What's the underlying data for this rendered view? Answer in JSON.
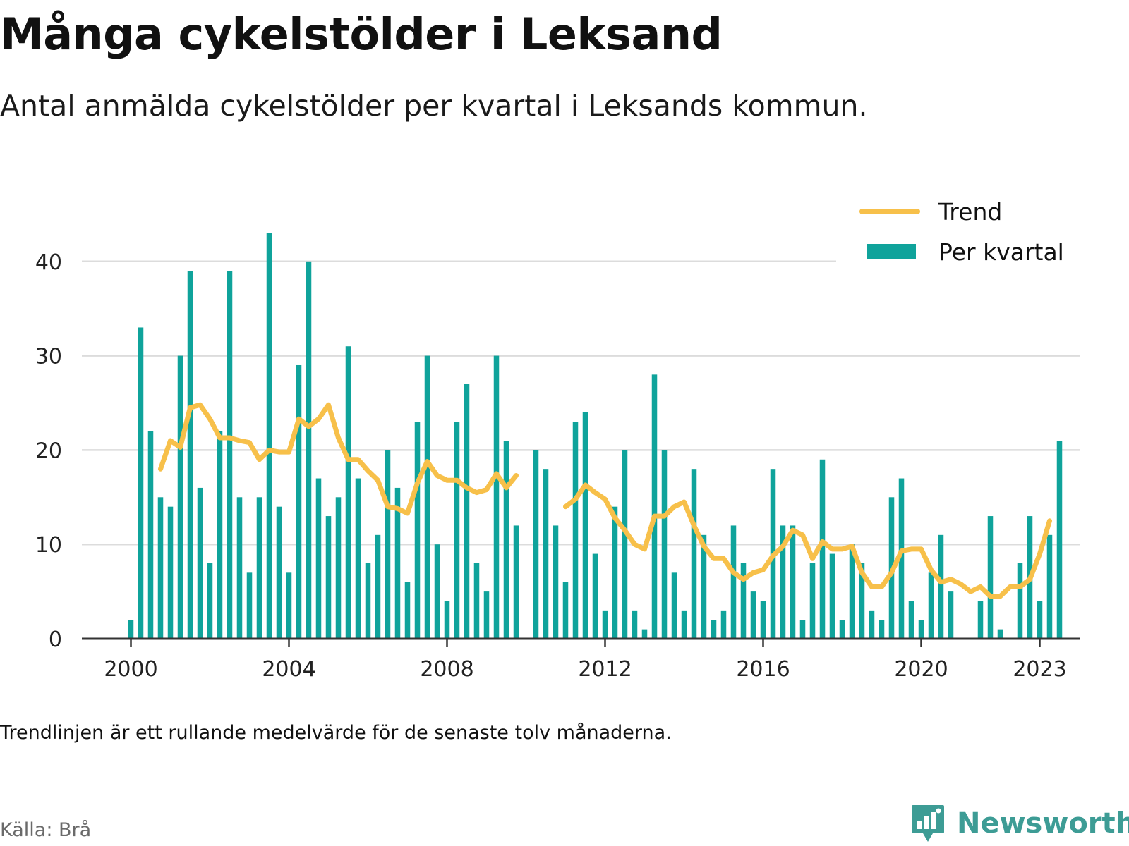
{
  "title": "Många cykelstölder i Leksand",
  "subtitle": "Antal anmälda cykelstölder per kvartal i Leksands kommun.",
  "note": "Trendlinjen är ett rullande medelvärde för de senaste tolv månaderna.",
  "source": "Källa: Brå",
  "brand": {
    "name": "Newsworthy",
    "icon": "newsworthy-logo-icon"
  },
  "colors": {
    "bars": "#0fa39b",
    "trend": "#f7c04a",
    "grid": "#dcdcdc",
    "axis": "#333333",
    "brand": "#3d9c95"
  },
  "chart_data": {
    "type": "bar",
    "legend_position": "top-right",
    "legend": [
      {
        "name": "Trend",
        "kind": "line"
      },
      {
        "name": "Per kvartal",
        "kind": "bar"
      }
    ],
    "grid": true,
    "ylim": [
      0,
      45
    ],
    "xlim": [
      2000,
      2023.6
    ],
    "y_ticks": [
      0,
      10,
      20,
      30,
      40
    ],
    "x_ticks": [
      2000,
      2004,
      2008,
      2012,
      2016,
      2020,
      2023
    ],
    "series": [
      {
        "name": "Per kvartal",
        "type": "bar",
        "start": 2000,
        "step": 0.25,
        "values": [
          2,
          33,
          22,
          15,
          14,
          30,
          39,
          16,
          8,
          22,
          39,
          15,
          7,
          15,
          43,
          14,
          7,
          29,
          40,
          17,
          13,
          15,
          31,
          17,
          8,
          11,
          20,
          16,
          6,
          23,
          30,
          10,
          4,
          23,
          27,
          8,
          5,
          30,
          21,
          12,
          null,
          20,
          18,
          12,
          6,
          23,
          24,
          9,
          3,
          14,
          20,
          3,
          1,
          28,
          20,
          7,
          3,
          18,
          11,
          2,
          3,
          12,
          8,
          5,
          4,
          18,
          12,
          12,
          2,
          8,
          19,
          9,
          2,
          10,
          8,
          3,
          2,
          15,
          17,
          4,
          2,
          7,
          11,
          5,
          0,
          0,
          4,
          13,
          1,
          0,
          8,
          13,
          4,
          11,
          21
        ]
      },
      {
        "name": "Trend",
        "type": "line",
        "start": 2000.75,
        "step": 0.25,
        "values": [
          18,
          21,
          20.3,
          24.5,
          24.8,
          23.3,
          21.3,
          21.3,
          21,
          20.8,
          19,
          20,
          19.8,
          19.8,
          23.3,
          22.5,
          23.3,
          24.8,
          21.3,
          19,
          19,
          17.8,
          16.8,
          14,
          13.8,
          13.3,
          16.5,
          18.8,
          17.3,
          16.8,
          16.8,
          16,
          15.5,
          15.8,
          17.5,
          16,
          17.3,
          null,
          null,
          null,
          null,
          14,
          14.8,
          16.3,
          15.5,
          14.8,
          12.8,
          11.5,
          10,
          9.5,
          13,
          13,
          14,
          14.5,
          12,
          9.8,
          8.5,
          8.5,
          7,
          6.3,
          7,
          7.3,
          8.8,
          9.8,
          11.5,
          11,
          8.5,
          10.3,
          9.5,
          9.5,
          9.8,
          7,
          5.5,
          5.5,
          7,
          9.3,
          9.5,
          9.5,
          7.3,
          6,
          6.3,
          5.8,
          5,
          5.5,
          4.5,
          4.5,
          5.5,
          5.5,
          6.3,
          9,
          12.5
        ]
      }
    ]
  }
}
